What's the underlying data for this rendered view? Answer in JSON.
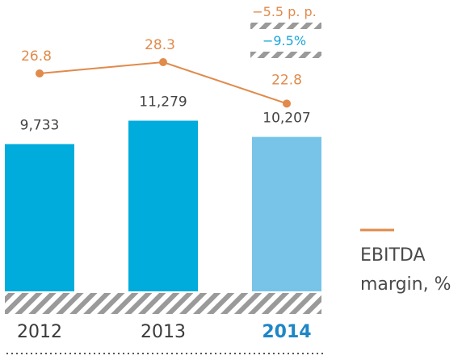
{
  "chart_data": {
    "type": "bar",
    "categories": [
      "2012",
      "2013",
      "2014"
    ],
    "bar_values": [
      9733,
      11279,
      10207
    ],
    "bar_labels": [
      "9,733",
      "11,279",
      "10,207"
    ],
    "line": {
      "name": "EBITDA margin, %",
      "values": [
        26.8,
        28.3,
        22.8
      ],
      "labels": [
        "26.8",
        "28.3",
        "22.8"
      ]
    },
    "deltas": {
      "margin_change": "−5.5 p. p.",
      "value_change": "−9.5%"
    },
    "legend": {
      "line1": "EBITDA",
      "line2": "margin, %",
      "placement": "right"
    },
    "highlight_category": "2014",
    "colors": {
      "bar": "#00ACDB",
      "bar_highlight": "#77C4E8",
      "line": "#E08A4B",
      "hatch": "#9a9a9a",
      "highlight_text": "#1f86c6",
      "delta_blue": "#1aa6d9"
    },
    "grid": false
  }
}
